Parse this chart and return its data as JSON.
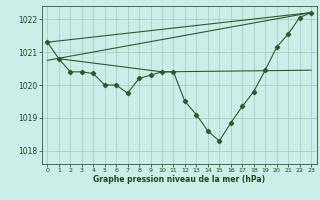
{
  "bg_color": "#cceee8",
  "grid_color": "#99ccbb",
  "line_color": "#2d5a2d",
  "text_color": "#1a4a1a",
  "xlabel": "Graphe pression niveau de la mer (hPa)",
  "ylim": [
    1017.6,
    1022.4
  ],
  "xlim": [
    -0.5,
    23.5
  ],
  "yticks": [
    1018,
    1019,
    1020,
    1021,
    1022
  ],
  "xticks": [
    0,
    1,
    2,
    3,
    4,
    5,
    6,
    7,
    8,
    9,
    10,
    11,
    12,
    13,
    14,
    15,
    16,
    17,
    18,
    19,
    20,
    21,
    22,
    23
  ],
  "main_series": [
    1021.3,
    1020.8,
    1020.4,
    1020.4,
    1020.35,
    1020.0,
    1020.0,
    1019.75,
    1020.2,
    1020.3,
    1020.4,
    1020.4,
    1019.5,
    1019.1,
    1018.6,
    1018.3,
    1018.85,
    1019.35,
    1019.8,
    1020.45,
    1021.15,
    1021.55,
    1022.05,
    1022.2
  ],
  "trend1_x": [
    0,
    23
  ],
  "trend1_y": [
    1021.3,
    1022.2
  ],
  "trend2_x": [
    0,
    23
  ],
  "trend2_y": [
    1020.75,
    1022.2
  ],
  "trend3_x": [
    1,
    10,
    23
  ],
  "trend3_y": [
    1020.8,
    1020.4,
    1020.45
  ],
  "lw": 0.8,
  "ms": 2.2
}
